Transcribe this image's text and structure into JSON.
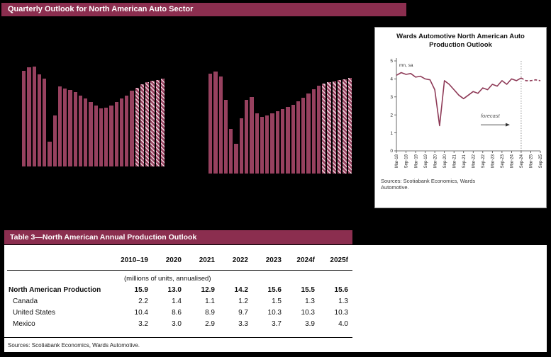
{
  "colors": {
    "accent": "#8b2e4f",
    "bar": "#97415f",
    "line": "#8e3a57",
    "page_bg": "#000000"
  },
  "header": {
    "title": "Quarterly Outlook for North American Auto Sector"
  },
  "chart_data": [
    {
      "type": "bar",
      "name": "quarterly-auto-bars-left",
      "values": [
        4.3,
        4.45,
        4.5,
        4.15,
        3.95,
        1.1,
        2.3,
        3.6,
        3.5,
        3.45,
        3.35,
        3.2,
        3.05,
        2.9,
        2.75,
        2.6,
        2.65,
        2.75,
        2.9,
        3.05,
        3.2,
        3.4,
        3.55,
        3.7,
        3.8,
        3.85,
        3.9,
        3.95
      ],
      "forecast_bars": 6,
      "ylim": [
        0,
        5
      ]
    },
    {
      "type": "bar",
      "name": "quarterly-auto-bars-right",
      "values": [
        4.5,
        4.6,
        4.35,
        3.3,
        2.0,
        1.35,
        2.5,
        3.3,
        3.45,
        2.7,
        2.55,
        2.6,
        2.7,
        2.8,
        2.9,
        3.0,
        3.1,
        3.25,
        3.4,
        3.6,
        3.8,
        3.95,
        4.05,
        4.1,
        4.15,
        4.2,
        4.25,
        4.3
      ],
      "forecast_bars": 6,
      "ylim": [
        0,
        5
      ]
    },
    {
      "type": "line",
      "title": "Wards Automotive North American Auto Production Outlook",
      "ylabel": "mn, sa",
      "ylim": [
        0,
        5
      ],
      "yticks": [
        0,
        1,
        2,
        3,
        4,
        5
      ],
      "x_tick_labels": [
        "Mar-18",
        "Sep-18",
        "Mar-19",
        "Sep-19",
        "Mar-20",
        "Sep-20",
        "Mar-21",
        "Sep-21",
        "Mar-22",
        "Sep-22",
        "Mar-23",
        "Sep-23",
        "Mar-24",
        "Sep-24",
        "Mar-25",
        "Sep-25"
      ],
      "values": [
        4.2,
        4.35,
        4.25,
        4.3,
        4.1,
        4.15,
        4.0,
        3.95,
        3.4,
        1.4,
        3.9,
        3.7,
        3.4,
        3.1,
        2.9,
        3.1,
        3.3,
        3.2,
        3.5,
        3.4,
        3.7,
        3.6,
        3.9,
        3.7,
        4.0,
        3.9,
        4.05,
        3.9,
        3.9,
        3.95,
        3.9
      ],
      "forecast_start_index": 26,
      "annotation": "forecast",
      "legend": [],
      "grid": false,
      "source_note": "Sources: Scotiabank Economics, Wards Automotive."
    }
  ],
  "table": {
    "title": "Table 3—North American Annual Production Outlook",
    "unit_note": "(millions of units, annualised)",
    "columns": [
      "2010–19",
      "2020",
      "2021",
      "2022",
      "2023",
      "2024f",
      "2025f"
    ],
    "rows": [
      {
        "label": "North American Production",
        "bold": true,
        "values": [
          "15.9",
          "13.0",
          "12.9",
          "14.2",
          "15.6",
          "15.5",
          "15.6"
        ]
      },
      {
        "label": "Canada",
        "bold": false,
        "values": [
          "2.2",
          "1.4",
          "1.1",
          "1.2",
          "1.5",
          "1.3",
          "1.3"
        ]
      },
      {
        "label": "United States",
        "bold": false,
        "values": [
          "10.4",
          "8.6",
          "8.9",
          "9.7",
          "10.3",
          "10.3",
          "10.3"
        ]
      },
      {
        "label": "Mexico",
        "bold": false,
        "values": [
          "3.2",
          "3.0",
          "2.9",
          "3.3",
          "3.7",
          "3.9",
          "4.0"
        ]
      }
    ],
    "sources": "Sources: Scotiabank Economics, Wards Automotive."
  }
}
